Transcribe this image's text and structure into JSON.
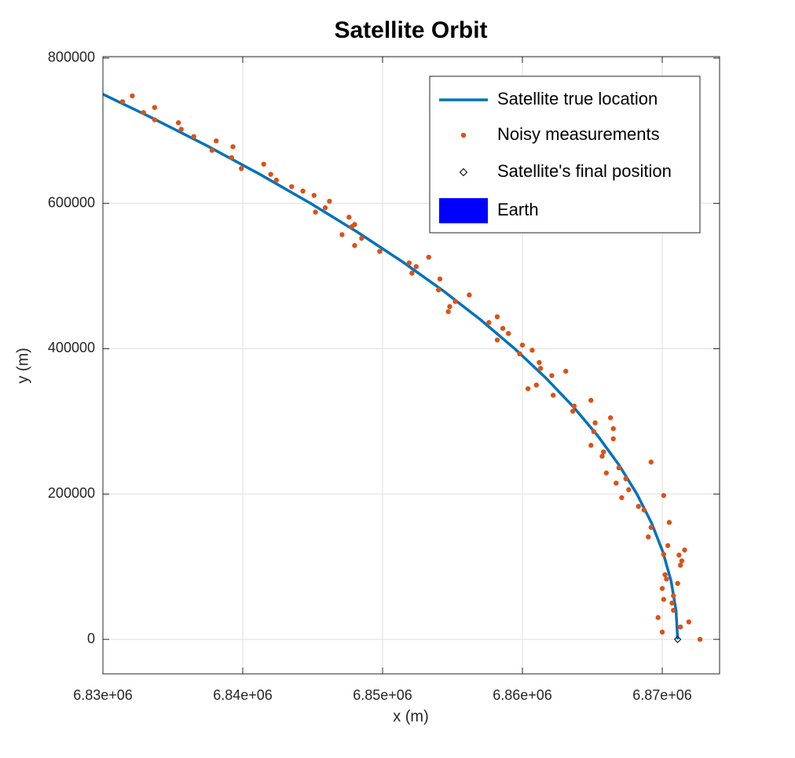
{
  "chart_data": {
    "type": "line",
    "title": "Satellite Orbit",
    "x_label": "x (m)",
    "y_label": "y (m)",
    "xlim": [
      6830000,
      6874100
    ],
    "ylim": [
      -47500,
      802000
    ],
    "xticks": [
      {
        "value": 6830000,
        "label": "6.83e+06"
      },
      {
        "value": 6840000,
        "label": "6.84e+06"
      },
      {
        "value": 6850000,
        "label": "6.85e+06"
      },
      {
        "value": 6860000,
        "label": "6.86e+06"
      },
      {
        "value": 6870000,
        "label": "6.87e+06"
      }
    ],
    "yticks": [
      0,
      200000,
      400000,
      600000,
      800000
    ],
    "grid": true,
    "legend": "northeast",
    "series": [
      {
        "name": "Satellite true location",
        "type": "line",
        "color": "#0072bd",
        "x": [
          6871100,
          6870984,
          6870634,
          6870052,
          6869237,
          6868189,
          6866907,
          6865393,
          6863644,
          6861663,
          6859447,
          6856998,
          6854314,
          6851395,
          6848241,
          6844853,
          6841229,
          6837370,
          6833273,
          6828940
        ],
        "y": [
          0,
          40000,
          80000,
          120000,
          160000,
          200000,
          240000,
          280000,
          320000,
          360000,
          400000,
          440000,
          480000,
          520000,
          560000,
          600000,
          640000,
          680000,
          720000,
          760000
        ]
      },
      {
        "name": "Noisy measurements",
        "type": "scatter",
        "color": "#d95319",
        "x": [
          6831400,
          6832100,
          6832900,
          6833700,
          6833700,
          6835400,
          6835600,
          6836500,
          6837800,
          6838100,
          6839200,
          6839300,
          6839900,
          6841500,
          6842000,
          6842400,
          6843500,
          6844300,
          6845100,
          6845200,
          6845900,
          6846200,
          6847100,
          6847600,
          6847800,
          6848000,
          6848000,
          6848500,
          6849800,
          6851900,
          6852100,
          6852400,
          6853300,
          6854000,
          6854100,
          6854700,
          6854800,
          6855200,
          6856200,
          6857600,
          6858200,
          6858200,
          6858600,
          6859000,
          6859800,
          6860000,
          6860400,
          6860700,
          6861000,
          6861200,
          6861300,
          6862100,
          6862200,
          6863100,
          6863600,
          6863700,
          6864900,
          6864900,
          6865100,
          6865200,
          6865700,
          6865800,
          6866000,
          6866300,
          6866500,
          6866500,
          6866700,
          6866900,
          6867100,
          6867400,
          6867600,
          6868300,
          6868700,
          6869000,
          6869200,
          6869200,
          6869700,
          6870000,
          6870000,
          6870100,
          6870100,
          6870100,
          6870200,
          6870400,
          6870300,
          6870500,
          6870700,
          6870800,
          6870800,
          6871100,
          6871200,
          6871300,
          6871300,
          6871400,
          6871600,
          6871900,
          6872700
        ],
        "y": [
          740000,
          748000,
          725000,
          732000,
          715000,
          711000,
          702000,
          692000,
          673000,
          686000,
          663000,
          678000,
          648000,
          654000,
          640000,
          632000,
          623000,
          617000,
          611000,
          588000,
          594000,
          603000,
          557000,
          581000,
          568000,
          571000,
          542000,
          552000,
          534000,
          518000,
          504000,
          513000,
          526000,
          481000,
          496000,
          451000,
          458000,
          465000,
          474000,
          436000,
          444000,
          412000,
          428000,
          421000,
          393000,
          405000,
          345000,
          398000,
          350000,
          381000,
          373000,
          363000,
          336000,
          369000,
          314000,
          321000,
          329000,
          267000,
          286000,
          298000,
          252000,
          258000,
          229000,
          305000,
          290000,
          276000,
          215000,
          236000,
          195000,
          221000,
          206000,
          183000,
          178000,
          141000,
          154000,
          244000,
          30000,
          70000,
          10000,
          55000,
          117000,
          198000,
          89000,
          129000,
          83000,
          161000,
          50000,
          40000,
          60000,
          77000,
          116000,
          17000,
          102000,
          108000,
          123000,
          24000,
          0
        ]
      },
      {
        "name": "Satellite's final position",
        "type": "marker",
        "color": "#000000",
        "x": [
          6871100
        ],
        "y": [
          0
        ]
      },
      {
        "name": "Earth",
        "type": "patch",
        "color": "#0000ff",
        "x": [],
        "y": []
      }
    ]
  }
}
